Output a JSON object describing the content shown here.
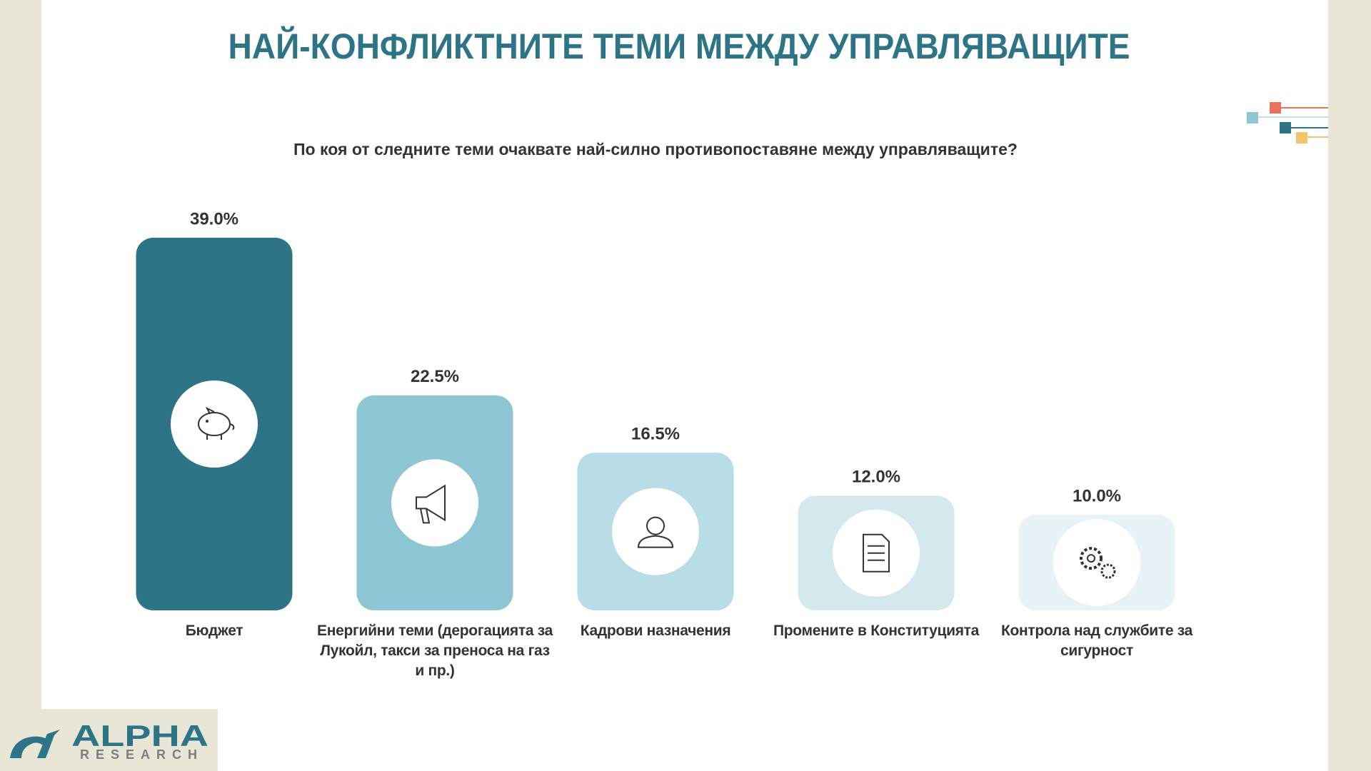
{
  "chart_data": {
    "type": "bar",
    "title": "НАЙ-КОНФЛИКТНИТЕ ТЕМИ МЕЖДУ УПРАВЛЯВАЩИТЕ",
    "subtitle": "По коя от следните теми очаквате най-силно противопоставяне между управляващите?",
    "categories": [
      "Бюджет",
      "Енергийни теми (дерогацията за Лукойл, такси за преноса на газ и пр.)",
      "Кадрови назначения",
      "Промените в Конституцията",
      "Контрола над службите за сигурност"
    ],
    "values": [
      39.0,
      22.5,
      16.5,
      12.0,
      10.0
    ],
    "value_labels": [
      "39.0%",
      "22.5%",
      "16.5%",
      "12.0%",
      "10.0%"
    ],
    "colors": [
      "#2e7487",
      "#8ec7d3",
      "#b8dde6",
      "#d3e9ee",
      "#e7f3f6"
    ]
  },
  "logo": {
    "name": "ALPHA",
    "tagline": "RESEARCH"
  }
}
